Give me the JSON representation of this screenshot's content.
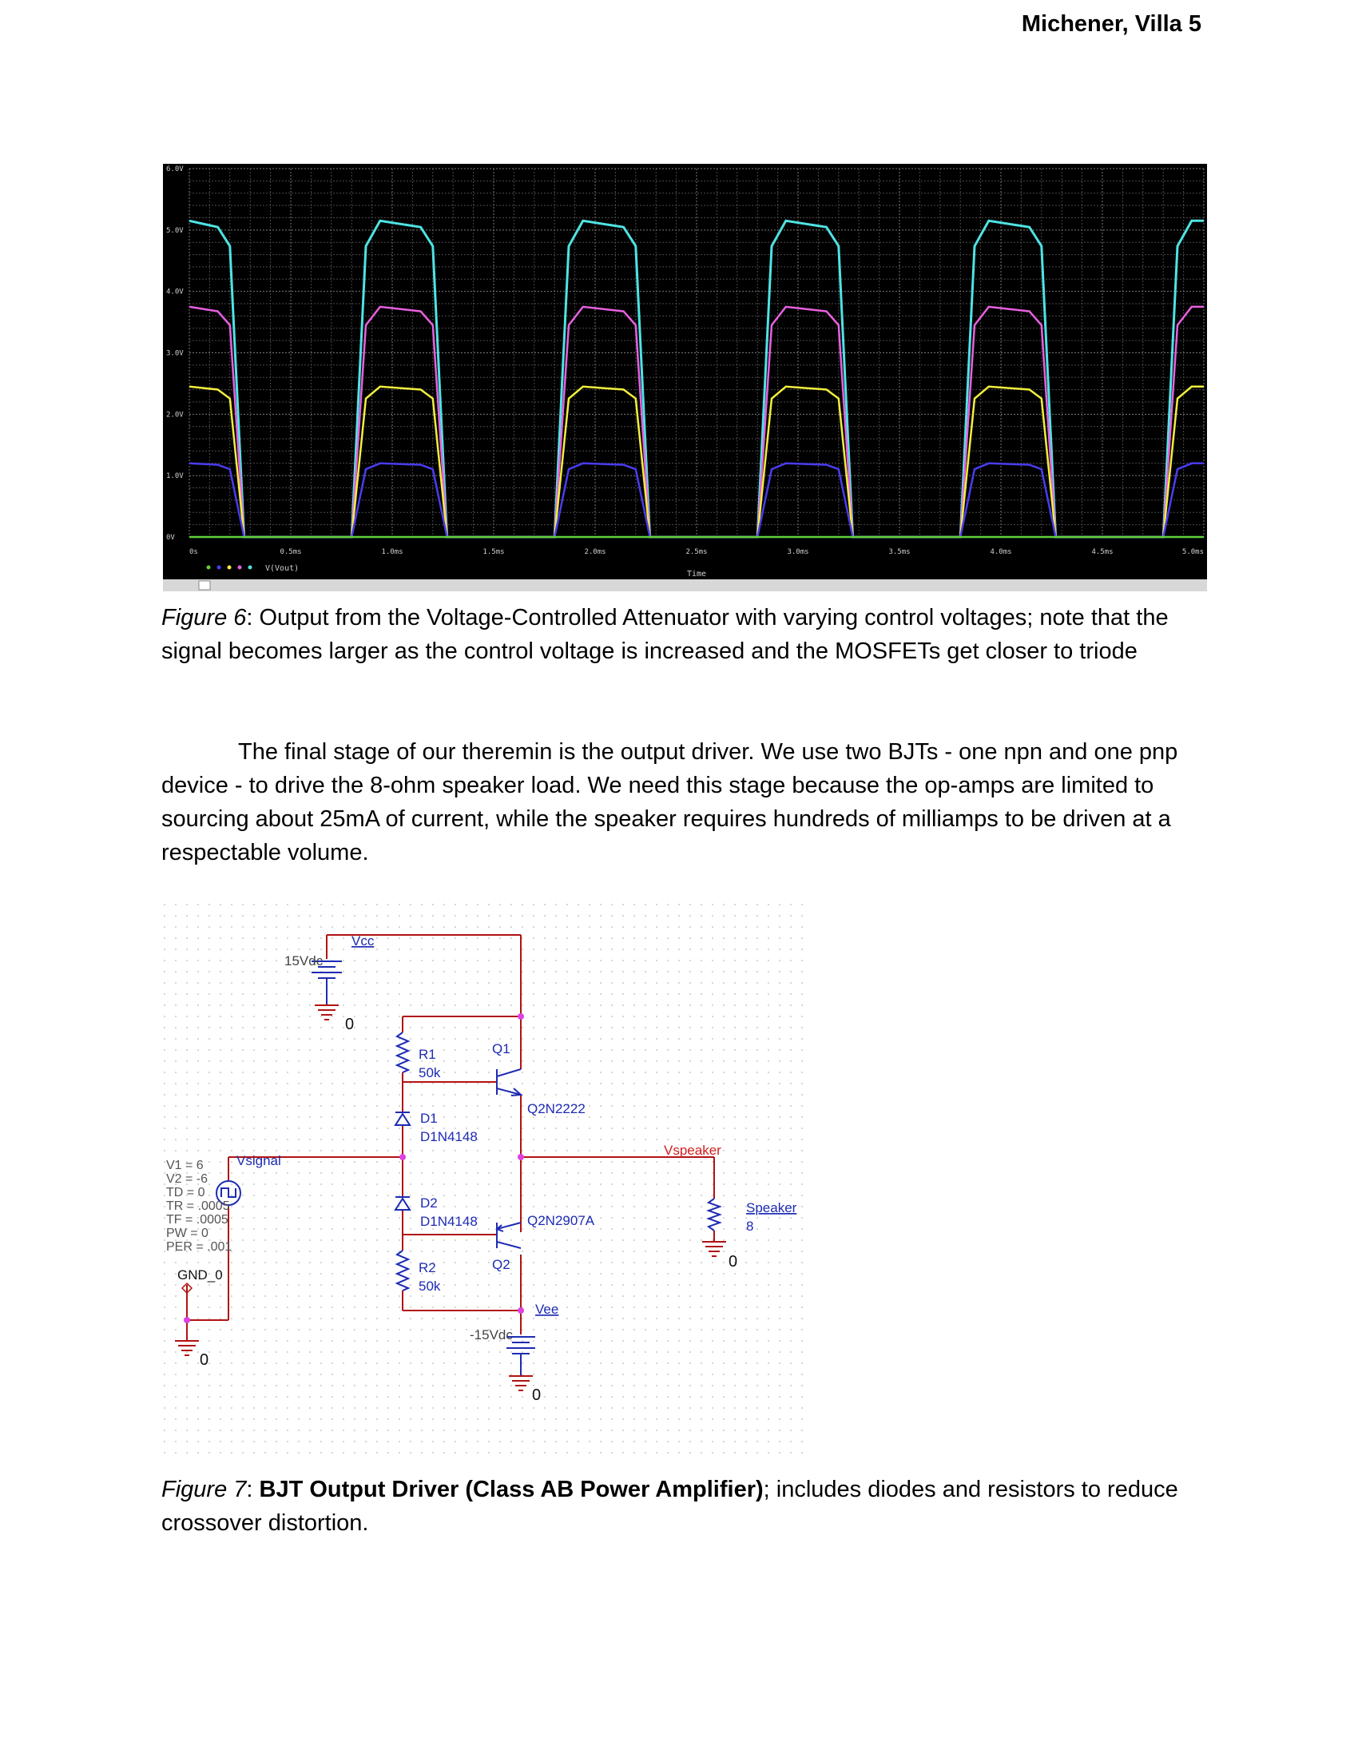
{
  "header": {
    "text": "Michener, Villa 5"
  },
  "figure6": {
    "caption_label": "Figure 6",
    "caption_text": ": Output from the Voltage-Controlled Attenuator with varying control voltages; note that the signal becomes larger as the control voltage is increased and the MOSFETs get closer to triode",
    "y_ticks": [
      "6.0V",
      "5.0V",
      "4.0V",
      "3.0V",
      "2.0V",
      "1.0V",
      "0V"
    ],
    "x_ticks": [
      "0s",
      "0.5ms",
      "1.0ms",
      "1.5ms",
      "2.0ms",
      "2.5ms",
      "3.0ms",
      "3.5ms",
      "4.0ms",
      "4.5ms",
      "5.0ms"
    ],
    "legend": "V(Vout)",
    "xlabel": "Time"
  },
  "chart_data": {
    "type": "line",
    "x_unit": "ms",
    "xlim": [
      0,
      5
    ],
    "ylim": [
      0,
      6
    ],
    "grid": true,
    "legend": [
      "V(Vout)"
    ],
    "xlabel": "Time",
    "ylabel": "",
    "period_ms": 1.0,
    "edges_ms": [
      0.2,
      0.8,
      1.2,
      1.8,
      2.2,
      2.8,
      3.2,
      3.8,
      4.2,
      4.8
    ],
    "series": [
      {
        "color": "#4fe3e3",
        "high": 5.15,
        "low": 0.0
      },
      {
        "color": "#e860e0",
        "high": 3.75,
        "low": 0.0
      },
      {
        "color": "#f2ef3c",
        "high": 2.45,
        "low": 0.0
      },
      {
        "color": "#4a3cf0",
        "high": 1.2,
        "low": 0.0
      },
      {
        "color": "#5fd23c",
        "high": 0.0,
        "low": 0.0
      }
    ]
  },
  "body": {
    "paragraph": "The final stage of our theremin is the output driver.  We use two BJTs - one npn and one pnp device - to drive the 8-ohm speaker load.  We need this stage because the op-amps are limited to sourcing about 25mA of current, while the speaker requires hundreds of milliamps to be driven at a respectable volume."
  },
  "figure7": {
    "caption_label": "Figure 7",
    "caption_bold": "BJT Output Driver (Class AB Power Amplifier)",
    "caption_text": "; includes diodes and resistors to reduce crossover distortion.",
    "vcc_label": "Vcc",
    "vcc_source": "15Vdc",
    "vee_label": "Vee",
    "vee_source": "-15Vdc",
    "ground": "0",
    "r1_name": "R1",
    "r1_value": "50k",
    "r2_name": "R2",
    "r2_value": "50k",
    "q1_name": "Q1",
    "q1_model": "Q2N2222",
    "q2_name": "Q2",
    "q2_model": "Q2N2907A",
    "d1_name": "D1",
    "d1_model": "D1N4148",
    "d2_name": "D2",
    "d2_model": "D1N4148",
    "vspeaker": "Vspeaker",
    "speaker_name": "Speaker",
    "speaker_value": "8",
    "vsignal": "Vsignal",
    "gnd_label": "GND_0",
    "params": [
      "V1 = 6",
      "V2 = -6",
      "TD = 0",
      "TR = .0005",
      "TF = .0005",
      "PW = 0",
      "PER = .001"
    ]
  }
}
